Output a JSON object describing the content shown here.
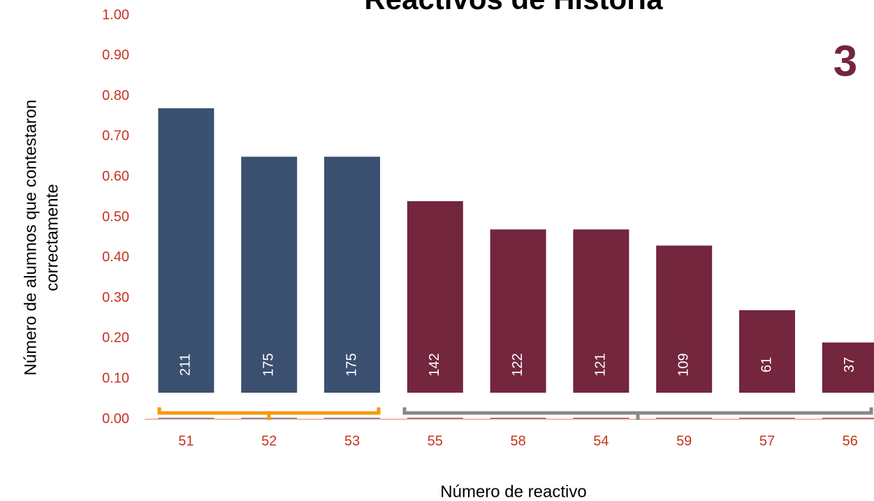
{
  "chart_data": {
    "type": "bar",
    "title": "Reactivos de Historia",
    "badge": "3",
    "x_label": "Número de reactivo",
    "y_label": [
      "Número de alumnos que contestaron",
      "correctamente"
    ],
    "categories": [
      "51",
      "52",
      "53",
      "55",
      "58",
      "54",
      "59",
      "57",
      "56"
    ],
    "values": [
      0.77,
      0.65,
      0.65,
      0.54,
      0.47,
      0.47,
      0.43,
      0.27,
      0.19
    ],
    "counts": [
      211,
      175,
      175,
      142,
      122,
      121,
      109,
      61,
      37
    ],
    "colors": [
      "#3b5070",
      "#3b5070",
      "#3b5070",
      "#73263d",
      "#73263d",
      "#73263d",
      "#73263d",
      "#73263d",
      "#73263d"
    ],
    "ylim": [
      0,
      1
    ],
    "yticks": [
      {
        "value": 0,
        "label": "0.00"
      },
      {
        "value": 0.1,
        "label": "0.10"
      },
      {
        "value": 0.2,
        "label": "0.20"
      },
      {
        "value": 0.3,
        "label": "0.30"
      },
      {
        "value": 0.4,
        "label": "0.40"
      },
      {
        "value": 0.5,
        "label": "0.50"
      },
      {
        "value": 0.6,
        "label": "0.60"
      },
      {
        "value": 0.7,
        "label": "0.70"
      },
      {
        "value": 0.8,
        "label": "0.80"
      },
      {
        "value": 0.9,
        "label": "0.90"
      },
      {
        "value": 1,
        "label": "1.00"
      }
    ],
    "grid": false
  }
}
